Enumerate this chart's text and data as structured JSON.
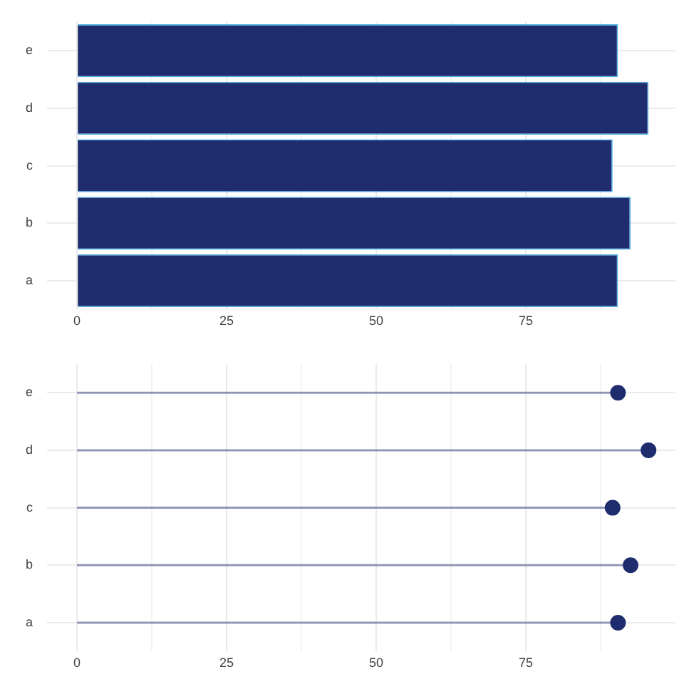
{
  "chart_data": [
    {
      "type": "bar",
      "orientation": "horizontal",
      "categories": [
        "e",
        "d",
        "c",
        "b",
        "a"
      ],
      "values": [
        90.4,
        95.5,
        89.5,
        92.5,
        90.4
      ],
      "color": "#1f2d6e",
      "xlim": [
        -5,
        100
      ],
      "xticks": [
        0,
        {
          "value": 12.5,
          "label": null
        },
        25,
        {
          "value": 37.5,
          "label": null
        },
        50,
        {
          "value": 62.5,
          "label": null
        },
        75,
        {
          "value": 87.5,
          "label": null
        }
      ],
      "grid": true,
      "legend": false
    },
    {
      "type": "lollipop",
      "orientation": "horizontal",
      "categories": [
        "e",
        "d",
        "c",
        "b",
        "a"
      ],
      "values": [
        90.4,
        95.5,
        89.5,
        92.5,
        90.4
      ],
      "color": "#1f2d6e",
      "xlim": [
        -5,
        100
      ],
      "xticks": [
        0,
        {
          "value": 12.5,
          "label": null
        },
        25,
        {
          "value": 37.5,
          "label": null
        },
        50,
        {
          "value": 62.5,
          "label": null
        },
        75,
        {
          "value": 87.5,
          "label": null
        }
      ],
      "grid": true,
      "legend": false,
      "marker": "circle"
    }
  ]
}
